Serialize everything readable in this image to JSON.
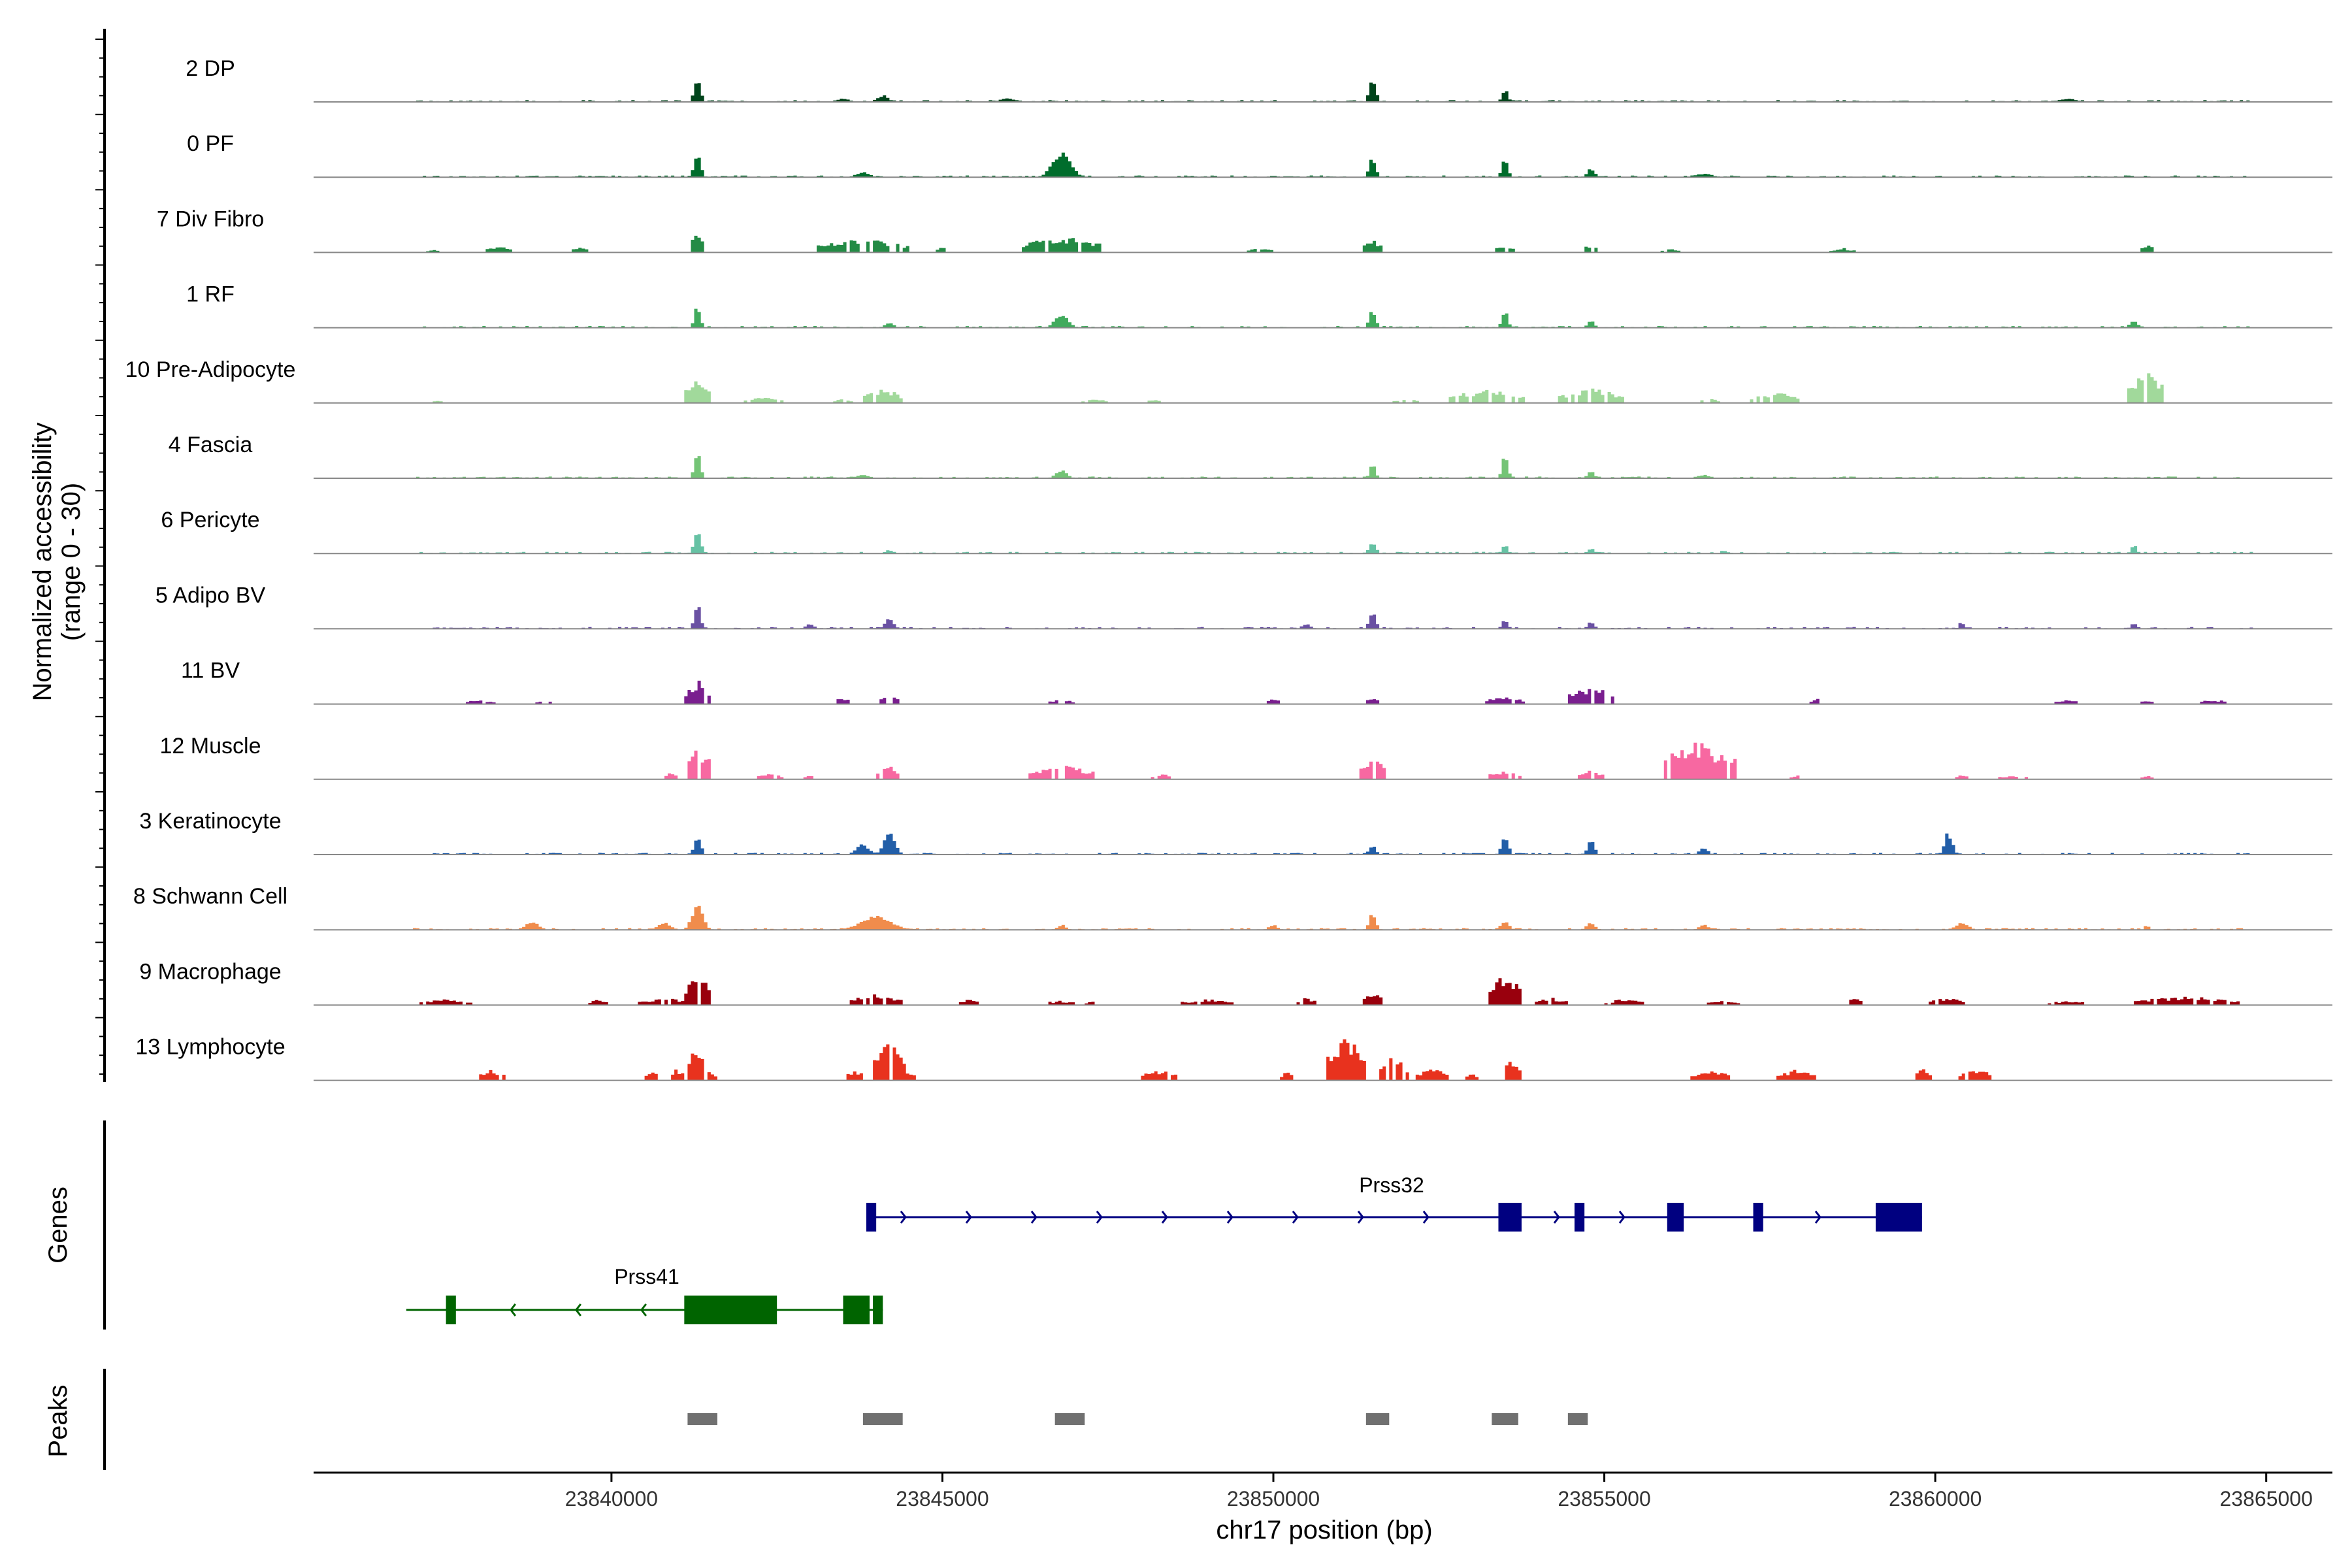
{
  "chart_data": {
    "type": "area",
    "title": "",
    "ylabel": [
      "Normalized accessibility",
      "(range 0 - 30)"
    ],
    "xlabel": "chr17 position (bp)",
    "xlim": [
      23835500,
      23866000
    ],
    "ylim": [
      0,
      30
    ],
    "x_ticks": [
      23840000,
      23845000,
      23850000,
      23855000,
      23860000,
      23865000
    ],
    "x_tick_labels": [
      "23840000",
      "23845000",
      "23850000",
      "23855000",
      "23860000",
      "23865000"
    ],
    "track_start": 23837000,
    "track_end": 23864800,
    "tracks": [
      {
        "label": "2 DP",
        "color": "#00441b",
        "style": "continuous",
        "peaks": [
          [
            23841300,
            14,
            150
          ],
          [
            23844100,
            4,
            250
          ],
          [
            23851500,
            14,
            150
          ],
          [
            23853500,
            8,
            130
          ],
          [
            23843500,
            2,
            300
          ],
          [
            23846000,
            2,
            400
          ],
          [
            23862000,
            2,
            400
          ]
        ]
      },
      {
        "label": "0 PF",
        "color": "#006d2c",
        "style": "continuous",
        "peaks": [
          [
            23841300,
            15,
            150
          ],
          [
            23846800,
            14,
            420
          ],
          [
            23851500,
            12,
            150
          ],
          [
            23853500,
            12,
            130
          ],
          [
            23854800,
            5,
            170
          ],
          [
            23843800,
            3,
            300
          ],
          [
            23856500,
            2,
            400
          ]
        ]
      },
      {
        "label": "7 Div Fibro",
        "color": "#238b45",
        "style": "sparse",
        "peaks": [
          [
            23841300,
            13,
            120
          ],
          [
            23846800,
            11,
            600
          ],
          [
            23843800,
            9,
            700
          ],
          [
            23851500,
            9,
            150
          ],
          [
            23853500,
            6,
            150
          ],
          [
            23854800,
            6,
            120
          ],
          [
            23838300,
            5,
            200
          ],
          [
            23839500,
            4,
            150
          ],
          [
            23845000,
            4,
            120
          ],
          [
            23849800,
            3,
            200
          ],
          [
            23856000,
            3,
            150
          ],
          [
            23863200,
            5,
            120
          ],
          [
            23858600,
            3,
            200
          ],
          [
            23837300,
            2,
            100
          ]
        ]
      },
      {
        "label": "1 RF",
        "color": "#41ab5d",
        "style": "continuous",
        "peaks": [
          [
            23841300,
            14,
            130
          ],
          [
            23846800,
            8,
            300
          ],
          [
            23851500,
            10,
            150
          ],
          [
            23853500,
            10,
            140
          ],
          [
            23854800,
            4,
            150
          ],
          [
            23863000,
            4,
            180
          ],
          [
            23844200,
            3,
            200
          ]
        ]
      },
      {
        "label": "10 Pre-Adipocyte",
        "color": "#a1d99b",
        "style": "sparse",
        "peaks": [
          [
            23841300,
            17,
            180
          ],
          [
            23844100,
            10,
            300
          ],
          [
            23853200,
            9,
            600
          ],
          [
            23854800,
            10,
            500
          ],
          [
            23856600,
            3,
            150
          ],
          [
            23857600,
            7,
            400
          ],
          [
            23863200,
            20,
            300
          ],
          [
            23842300,
            4,
            300
          ],
          [
            23847300,
            3,
            200
          ],
          [
            23848200,
            3,
            100
          ],
          [
            23852000,
            3,
            200
          ],
          [
            23837400,
            2,
            100
          ],
          [
            23843500,
            3,
            150
          ]
        ]
      },
      {
        "label": "4 Fascia",
        "color": "#74c476",
        "style": "continuous",
        "peaks": [
          [
            23841300,
            15,
            140
          ],
          [
            23853500,
            15,
            130
          ],
          [
            23846800,
            5,
            250
          ],
          [
            23851500,
            8,
            130
          ],
          [
            23854800,
            4,
            150
          ],
          [
            23843800,
            2,
            300
          ],
          [
            23856500,
            2,
            300
          ]
        ]
      },
      {
        "label": "6 Pericyte",
        "color": "#66c2a4",
        "style": "continuous",
        "peaks": [
          [
            23841300,
            14,
            150
          ],
          [
            23851500,
            7,
            150
          ],
          [
            23853500,
            5,
            130
          ],
          [
            23863000,
            5,
            130
          ],
          [
            23844200,
            2,
            200
          ],
          [
            23854800,
            3,
            150
          ],
          [
            23856800,
            2,
            120
          ]
        ]
      },
      {
        "label": "5 Adipo BV",
        "color": "#6a51a3",
        "style": "continuous",
        "peaks": [
          [
            23841300,
            15,
            140
          ],
          [
            23844200,
            6,
            200
          ],
          [
            23851500,
            10,
            150
          ],
          [
            23853500,
            6,
            130
          ],
          [
            23854800,
            4,
            150
          ],
          [
            23860400,
            4,
            120
          ],
          [
            23863000,
            4,
            130
          ],
          [
            23850500,
            3,
            200
          ],
          [
            23843000,
            3,
            200
          ]
        ]
      },
      {
        "label": "11 BV",
        "color": "#7a1f8f",
        "style": "sparse",
        "peaks": [
          [
            23841300,
            16,
            200
          ],
          [
            23844200,
            9,
            160
          ],
          [
            23854800,
            12,
            350
          ],
          [
            23853500,
            5,
            300
          ],
          [
            23851500,
            5,
            100
          ],
          [
            23843500,
            5,
            100
          ],
          [
            23838000,
            3,
            250
          ],
          [
            23839000,
            3,
            150
          ],
          [
            23846800,
            3,
            200
          ],
          [
            23850000,
            4,
            100
          ],
          [
            23858200,
            4,
            100
          ],
          [
            23862000,
            3,
            200
          ],
          [
            23863200,
            3,
            100
          ],
          [
            23864200,
            3,
            250
          ]
        ]
      },
      {
        "label": "12 Muscle",
        "color": "#f768a1",
        "style": "sparse",
        "peaks": [
          [
            23841300,
            23,
            200
          ],
          [
            23844200,
            9,
            200
          ],
          [
            23846800,
            10,
            500
          ],
          [
            23851500,
            18,
            180
          ],
          [
            23856400,
            25,
            600
          ],
          [
            23853500,
            6,
            250
          ],
          [
            23854800,
            6,
            200
          ],
          [
            23840900,
            5,
            80
          ],
          [
            23842400,
            4,
            200
          ],
          [
            23848300,
            4,
            150
          ],
          [
            23860400,
            4,
            100
          ],
          [
            23861200,
            3,
            250
          ],
          [
            23863200,
            3,
            100
          ],
          [
            23857900,
            3,
            100
          ],
          [
            23843000,
            3,
            100
          ]
        ]
      },
      {
        "label": "3 Keratinocyte",
        "color": "#225ea8",
        "style": "continuous",
        "peaks": [
          [
            23841300,
            12,
            150
          ],
          [
            23844200,
            14,
            250
          ],
          [
            23843800,
            6,
            300
          ],
          [
            23851500,
            6,
            150
          ],
          [
            23853500,
            12,
            150
          ],
          [
            23854800,
            9,
            150
          ],
          [
            23860200,
            13,
            180
          ],
          [
            23856500,
            4,
            200
          ]
        ]
      },
      {
        "label": "8 Schwann Cell",
        "color": "#f08c4c",
        "style": "continuous",
        "peaks": [
          [
            23841300,
            16,
            250
          ],
          [
            23844000,
            8,
            700
          ],
          [
            23851500,
            10,
            150
          ],
          [
            23840800,
            4,
            300
          ],
          [
            23838800,
            5,
            300
          ],
          [
            23853500,
            5,
            200
          ],
          [
            23854800,
            4,
            200
          ],
          [
            23860400,
            4,
            300
          ],
          [
            23856500,
            3,
            200
          ],
          [
            23850000,
            3,
            200
          ],
          [
            23863200,
            3,
            100
          ],
          [
            23846800,
            3,
            200
          ]
        ]
      },
      {
        "label": "9 Macrophage",
        "color": "#99000d",
        "style": "sparse",
        "peaks": [
          [
            23841300,
            21,
            200
          ],
          [
            23853500,
            21,
            250
          ],
          [
            23844000,
            8,
            400
          ],
          [
            23851500,
            8,
            200
          ],
          [
            23840800,
            5,
            400
          ],
          [
            23863800,
            6,
            800
          ],
          [
            23837500,
            4,
            400
          ],
          [
            23839800,
            4,
            150
          ],
          [
            23845400,
            4,
            150
          ],
          [
            23846800,
            3,
            300
          ],
          [
            23849000,
            4,
            400
          ],
          [
            23850500,
            5,
            150
          ],
          [
            23854200,
            5,
            250
          ],
          [
            23855300,
            4,
            300
          ],
          [
            23856800,
            3,
            250
          ],
          [
            23858800,
            6,
            100
          ],
          [
            23860200,
            5,
            300
          ],
          [
            23862000,
            3,
            300
          ],
          [
            23864300,
            3,
            300
          ],
          [
            23847300,
            3,
            150
          ]
        ]
      },
      {
        "label": "13 Lymphocyte",
        "color": "#e8321e",
        "style": "sparse",
        "peaks": [
          [
            23841300,
            28,
            150
          ],
          [
            23844200,
            26,
            250
          ],
          [
            23851100,
            30,
            300
          ],
          [
            23851800,
            16,
            250
          ],
          [
            23852400,
            8,
            250
          ],
          [
            23853600,
            13,
            150
          ],
          [
            23838200,
            7,
            200
          ],
          [
            23840600,
            8,
            100
          ],
          [
            23841000,
            8,
            100
          ],
          [
            23841500,
            6,
            100
          ],
          [
            23843700,
            7,
            150
          ],
          [
            23844500,
            6,
            100
          ],
          [
            23848300,
            7,
            300
          ],
          [
            23850200,
            6,
            100
          ],
          [
            23853000,
            6,
            100
          ],
          [
            23856600,
            7,
            300
          ],
          [
            23857900,
            7,
            300
          ],
          [
            23859800,
            8,
            150
          ],
          [
            23860600,
            8,
            250
          ]
        ]
      }
    ],
    "genes": [
      {
        "name": "Prss32",
        "color": "#000080",
        "strand": "+",
        "start": 23843850,
        "end": 23859800,
        "exons": [
          [
            23843850,
            23844000
          ],
          [
            23853400,
            23853750
          ],
          [
            23854550,
            23854700
          ],
          [
            23855950,
            23856200
          ],
          [
            23857250,
            23857400
          ],
          [
            23859100,
            23859800
          ]
        ]
      },
      {
        "name": "Prss41",
        "color": "#006400",
        "strand": "-",
        "start": 23836900,
        "end": 23844100,
        "exons": [
          [
            23837500,
            23837650
          ],
          [
            23841100,
            23842500
          ],
          [
            23843500,
            23843900
          ],
          [
            23843950,
            23844100
          ]
        ]
      }
    ],
    "peak_regions": [
      [
        23841150,
        23841600
      ],
      [
        23843800,
        23844400
      ],
      [
        23846700,
        23847150
      ],
      [
        23851400,
        23851750
      ],
      [
        23853300,
        23853700
      ],
      [
        23854450,
        23854750
      ]
    ],
    "panel_labels": {
      "genes": "Genes",
      "peaks": "Peaks"
    },
    "colors": {
      "axis": "#000000",
      "baseline": "#888888",
      "peak_region": "#707070"
    }
  }
}
